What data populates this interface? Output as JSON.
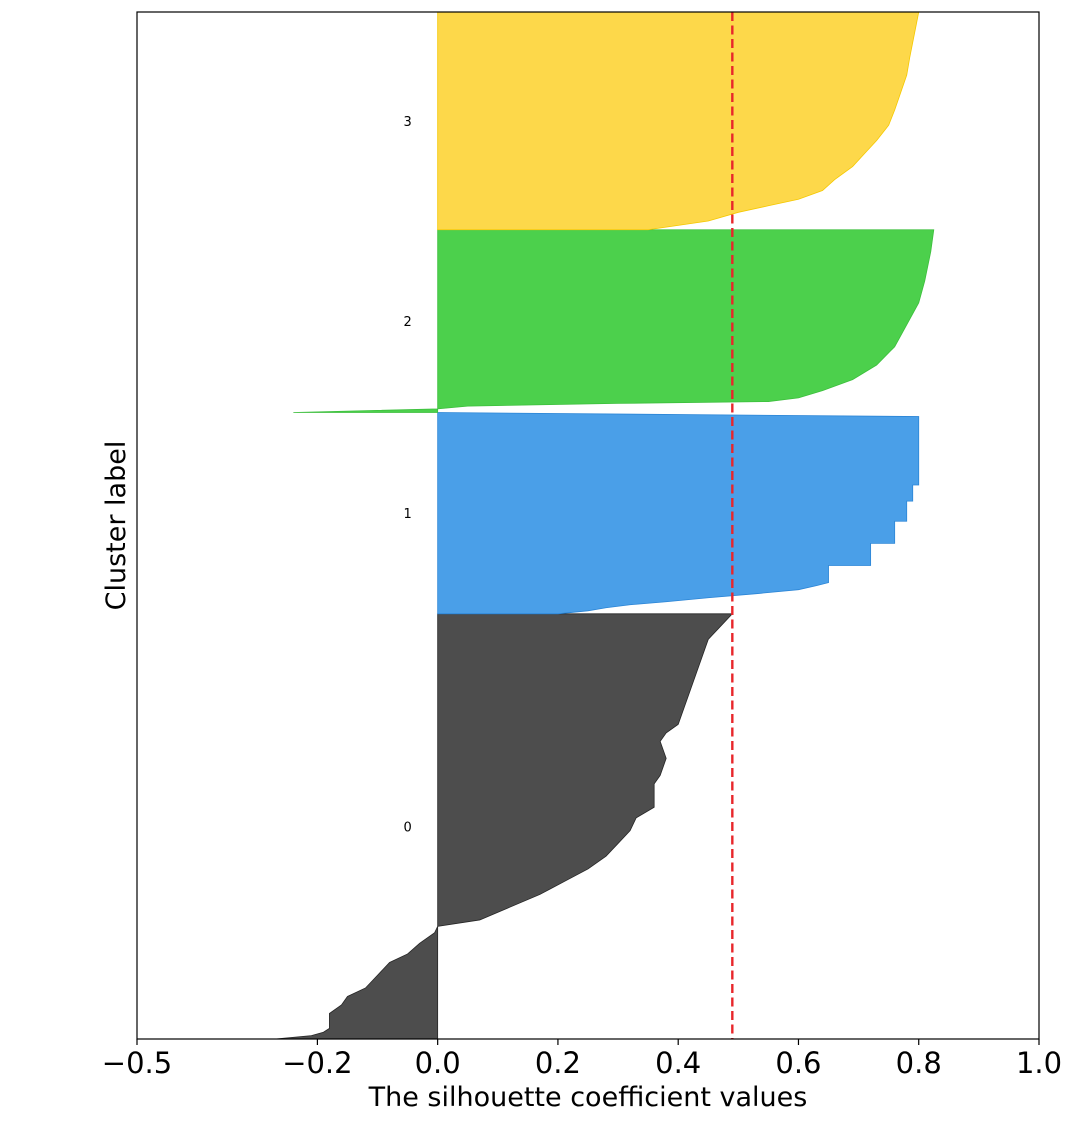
{
  "chart_data": {
    "type": "area",
    "title": "",
    "xlabel": "The silhouette coefficient values",
    "ylabel": "Cluster label",
    "xlim": [
      -0.5,
      1.0
    ],
    "xticks": [
      -0.5,
      -0.2,
      0.0,
      0.2,
      0.4,
      0.6,
      0.8,
      1.0
    ],
    "xtick_labels": [
      "−0.5",
      "−0.2",
      "0.0",
      "0.2",
      "0.4",
      "0.6",
      "0.8",
      "1.0"
    ],
    "grid": false,
    "average_silhouette": 0.49,
    "average_line_color": "#e8262b",
    "ylim": [
      0,
      1000
    ],
    "clusters": [
      {
        "label": "0",
        "color": "#4d4d4d",
        "edge_color": "#262626",
        "y_start": 0,
        "y_end": 414,
        "values_low_to_high": [
          [
            0.0,
            -0.27
          ],
          [
            0.008,
            -0.21
          ],
          [
            0.016,
            -0.19
          ],
          [
            0.025,
            -0.18
          ],
          [
            0.06,
            -0.18
          ],
          [
            0.08,
            -0.16
          ],
          [
            0.1,
            -0.15
          ],
          [
            0.12,
            -0.12
          ],
          [
            0.15,
            -0.1
          ],
          [
            0.18,
            -0.08
          ],
          [
            0.2,
            -0.05
          ],
          [
            0.225,
            -0.03
          ],
          [
            0.25,
            -0.005
          ],
          [
            0.265,
            0.0
          ],
          [
            0.28,
            0.07
          ],
          [
            0.31,
            0.12
          ],
          [
            0.34,
            0.17
          ],
          [
            0.37,
            0.21
          ],
          [
            0.4,
            0.25
          ],
          [
            0.43,
            0.28
          ],
          [
            0.46,
            0.3
          ],
          [
            0.49,
            0.32
          ],
          [
            0.52,
            0.33
          ],
          [
            0.545,
            0.36
          ],
          [
            0.6,
            0.36
          ],
          [
            0.62,
            0.37
          ],
          [
            0.66,
            0.38
          ],
          [
            0.7,
            0.37
          ],
          [
            0.72,
            0.38
          ],
          [
            0.74,
            0.4
          ],
          [
            0.78,
            0.41
          ],
          [
            0.82,
            0.42
          ],
          [
            0.86,
            0.43
          ],
          [
            0.9,
            0.44
          ],
          [
            0.94,
            0.45
          ],
          [
            0.97,
            0.47
          ],
          [
            1.0,
            0.49
          ]
        ]
      },
      {
        "label": "1",
        "color": "#4a9fe8",
        "edge_color": "#2b85d6",
        "y_start": 414,
        "y_end": 610,
        "values_low_to_high": [
          [
            0.0,
            0.2
          ],
          [
            0.015,
            0.25
          ],
          [
            0.03,
            0.28
          ],
          [
            0.045,
            0.32
          ],
          [
            0.06,
            0.38
          ],
          [
            0.08,
            0.45
          ],
          [
            0.1,
            0.53
          ],
          [
            0.12,
            0.6
          ],
          [
            0.14,
            0.63
          ],
          [
            0.155,
            0.65
          ],
          [
            0.24,
            0.65
          ],
          [
            0.24,
            0.72
          ],
          [
            0.35,
            0.72
          ],
          [
            0.35,
            0.76
          ],
          [
            0.46,
            0.76
          ],
          [
            0.46,
            0.78
          ],
          [
            0.56,
            0.78
          ],
          [
            0.56,
            0.79
          ],
          [
            0.64,
            0.79
          ],
          [
            0.64,
            0.8
          ],
          [
            0.98,
            0.8
          ]
        ]
      },
      {
        "label": "2",
        "color": "#4cd04c",
        "edge_color": "#3cbf3c",
        "y_start": 610,
        "y_end": 788,
        "values_low_to_high": [
          [
            0.0,
            -0.24
          ],
          [
            0.02,
            0.0
          ],
          [
            0.035,
            0.05
          ],
          [
            0.05,
            0.3
          ],
          [
            0.06,
            0.55
          ],
          [
            0.08,
            0.6
          ],
          [
            0.12,
            0.64
          ],
          [
            0.18,
            0.69
          ],
          [
            0.26,
            0.73
          ],
          [
            0.36,
            0.76
          ],
          [
            0.48,
            0.78
          ],
          [
            0.6,
            0.8
          ],
          [
            0.72,
            0.81
          ],
          [
            0.88,
            0.82
          ],
          [
            1.0,
            0.825
          ]
        ]
      },
      {
        "label": "3",
        "color": "#fdd84a",
        "edge_color": "#f5c800",
        "y_start": 788,
        "y_end": 1000,
        "values_low_to_high": [
          [
            0.0,
            0.35
          ],
          [
            0.02,
            0.4
          ],
          [
            0.04,
            0.45
          ],
          [
            0.08,
            0.5
          ],
          [
            0.11,
            0.55
          ],
          [
            0.14,
            0.6
          ],
          [
            0.18,
            0.64
          ],
          [
            0.23,
            0.66
          ],
          [
            0.29,
            0.69
          ],
          [
            0.35,
            0.71
          ],
          [
            0.41,
            0.73
          ],
          [
            0.48,
            0.75
          ],
          [
            0.55,
            0.76
          ],
          [
            0.63,
            0.77
          ],
          [
            0.71,
            0.78
          ],
          [
            0.79,
            0.785
          ],
          [
            0.86,
            0.79
          ],
          [
            0.93,
            0.795
          ],
          [
            1.0,
            0.8
          ]
        ]
      }
    ]
  }
}
